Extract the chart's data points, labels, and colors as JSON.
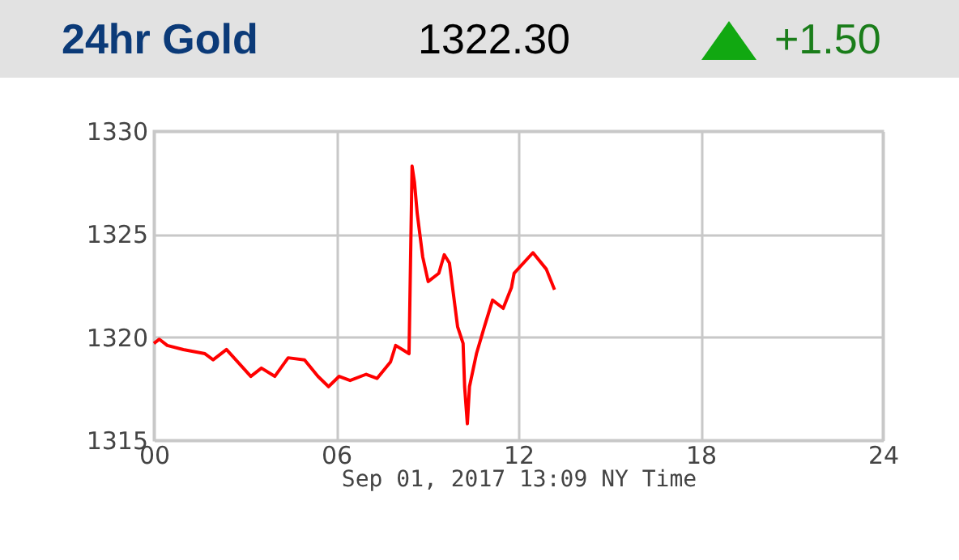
{
  "chart_data": {
    "type": "line",
    "title": "24hr Gold",
    "annotations": [
      "1322.30",
      "+1.50"
    ],
    "xlabel": "Sep 01, 2017 13:09 NY Time",
    "x": [
      0,
      0.18,
      0.44,
      0.97,
      1.68,
      1.95,
      2.39,
      3.19,
      3.54,
      3.98,
      4.42,
      4.96,
      5.4,
      5.75,
      6.1,
      6.46,
      6.99,
      7.35,
      7.79,
      7.96,
      8.4,
      8.5,
      8.58,
      8.67,
      8.85,
      9.03,
      9.38,
      9.56,
      9.73,
      10.0,
      10.18,
      10.23,
      10.32,
      10.39,
      10.62,
      10.88,
      11.15,
      11.5,
      11.77,
      11.86,
      12.48,
      12.92,
      13.19
    ],
    "series": [
      {
        "color": "#ff0000",
        "values": [
          1319.7,
          1319.9,
          1319.6,
          1319.4,
          1319.2,
          1318.9,
          1319.4,
          1318.1,
          1318.5,
          1318.1,
          1319.0,
          1318.9,
          1318.1,
          1317.6,
          1318.1,
          1317.9,
          1318.2,
          1318.0,
          1318.8,
          1319.6,
          1319.2,
          1328.3,
          1327.5,
          1326.0,
          1323.9,
          1322.7,
          1323.1,
          1324.0,
          1323.6,
          1320.5,
          1319.7,
          1317.6,
          1315.8,
          1317.6,
          1319.2,
          1320.5,
          1321.8,
          1321.4,
          1322.4,
          1323.1,
          1324.1,
          1323.3,
          1322.3
        ]
      }
    ],
    "xlim": [
      0,
      24
    ],
    "xticks": [
      {
        "value": 0,
        "label": "00"
      },
      {
        "value": 6,
        "label": "06"
      },
      12,
      18,
      24
    ],
    "ylim": [
      1315,
      1330
    ],
    "yticks": [
      1315,
      1320,
      1325,
      1330
    ],
    "grid": true
  }
}
